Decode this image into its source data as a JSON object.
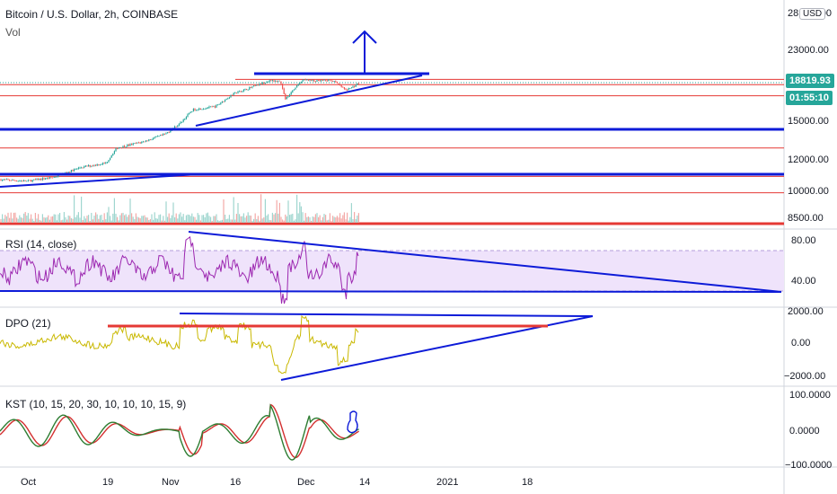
{
  "header": {
    "symbol": "Bitcoin / U.S. Dollar, 2h, COINBASE",
    "volume_label": "Vol",
    "currency_badge": "USD"
  },
  "price_pane": {
    "axis_ticks": [
      "28 000.00",
      "23000.00",
      "15000.00",
      "12000.00",
      "10000.00",
      "8500.00"
    ],
    "last_price": "18819.93",
    "countdown": "01:55:10",
    "last_price_color": "#26a69a",
    "countdown_color": "#26a69a"
  },
  "rsi_pane": {
    "label": "RSI (14, close)",
    "axis_ticks": [
      "80.00",
      "40.00"
    ],
    "line_color": "#9c27b0"
  },
  "dpo_pane": {
    "label": "DPO (21)",
    "axis_ticks": [
      "2000.00",
      "0.00",
      "−2000.00"
    ],
    "line_color": "#c9b800"
  },
  "kst_pane": {
    "label": "KST (10, 15, 20, 30, 10, 10, 10, 15, 9)",
    "axis_ticks": [
      "100.0000",
      "0.0000",
      "−100.0000"
    ],
    "kst_color": "#2e7d32",
    "signal_color": "#d32f2f"
  },
  "time_axis": {
    "labels": [
      "Oct",
      "19",
      "Nov",
      "16",
      "Dec",
      "14",
      "2021",
      "18"
    ]
  },
  "colors": {
    "trendline_blue": "#0d1bd8",
    "support_red": "#e53935",
    "candle_up": "#26a69a",
    "candle_down": "#ef5350"
  },
  "chart_data": [
    {
      "type": "candlestick",
      "title": "Bitcoin / U.S. Dollar, 2h, COINBASE",
      "x_labels": [
        "Oct",
        "19",
        "Nov",
        "16",
        "Dec",
        "14",
        "2021",
        "18"
      ],
      "y_ticks": [
        8500,
        10000,
        12000,
        15000,
        23000,
        28000
      ],
      "scale": "log",
      "approx_close_path": [
        {
          "x": "Oct",
          "y": 10600
        },
        {
          "x": "19",
          "y": 11600
        },
        {
          "x": "Nov",
          "y": 13800
        },
        {
          "x": "16",
          "y": 17500
        },
        {
          "x": "Dec",
          "y": 19100
        },
        {
          "x": "14",
          "y": 18820
        }
      ],
      "last_price": 18819.93
    },
    {
      "type": "line",
      "title": "RSI (14, close)",
      "y_ticks": [
        40,
        80
      ]
    },
    {
      "type": "line",
      "title": "DPO (21)",
      "y_ticks": [
        -2000,
        0,
        2000
      ]
    },
    {
      "type": "line",
      "title": "KST (10, 15, 20, 30, 10, 10, 10, 15, 9)",
      "y_ticks": [
        -100,
        0,
        100
      ]
    }
  ]
}
